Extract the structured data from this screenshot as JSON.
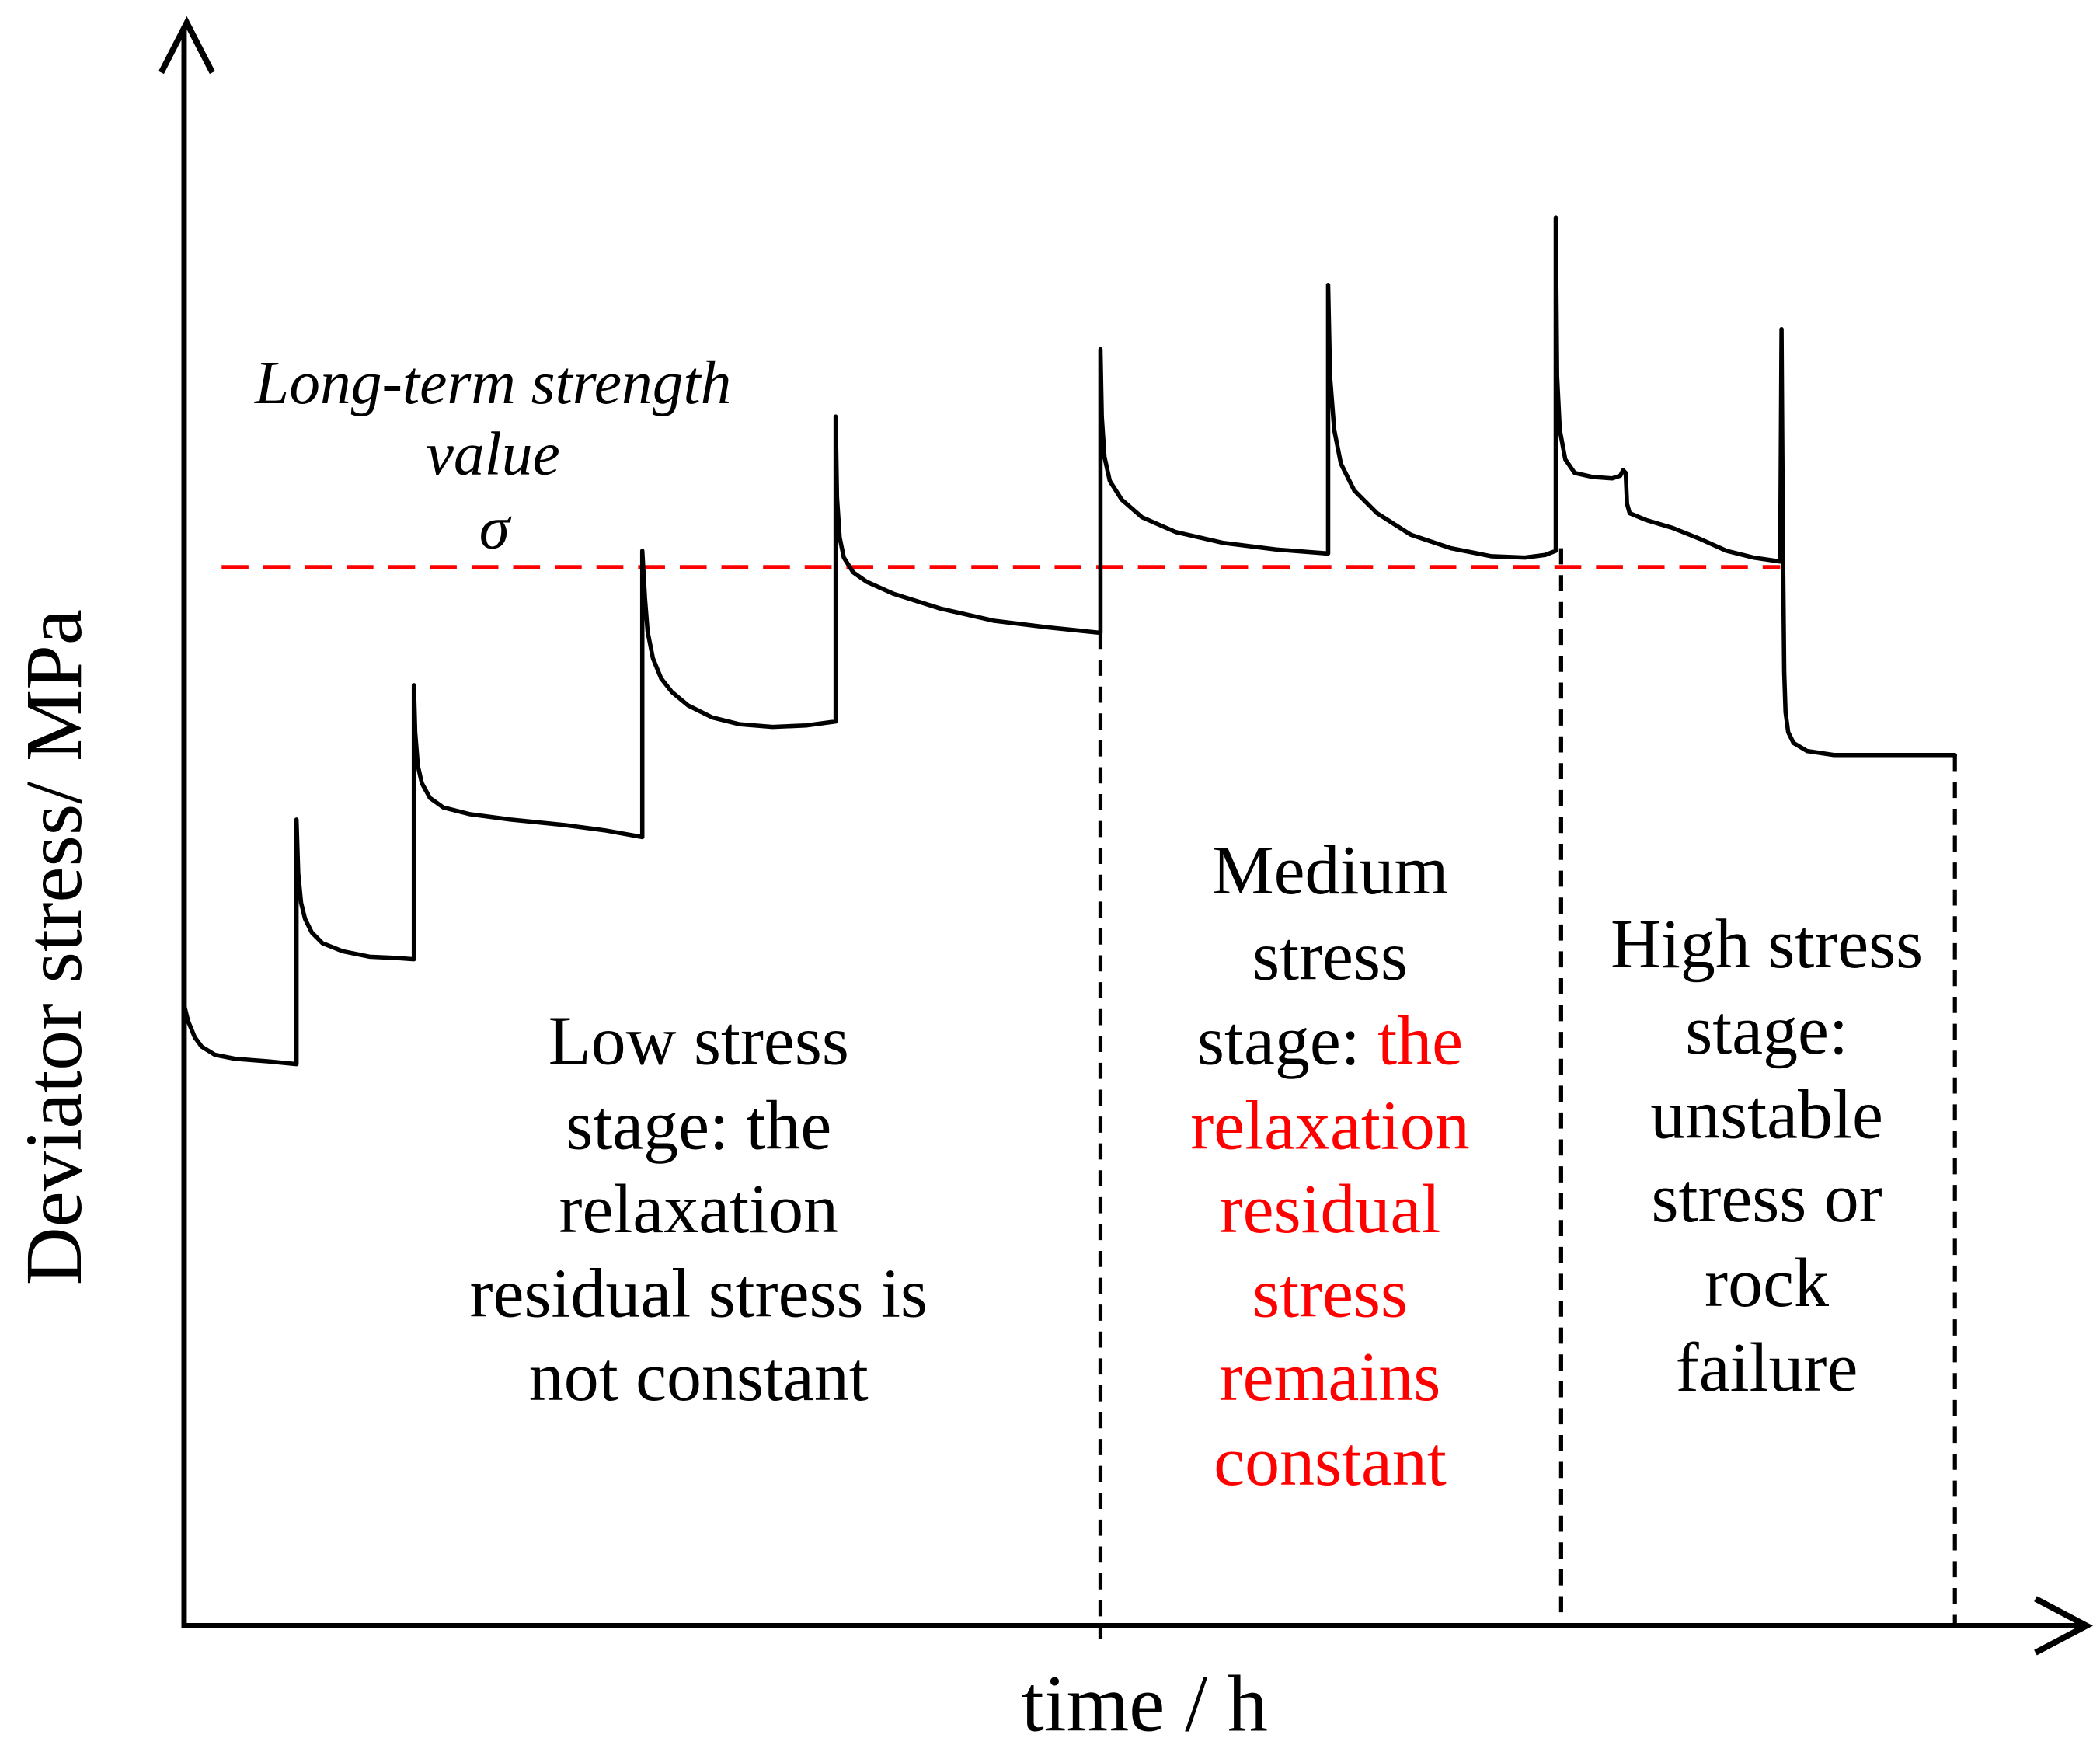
{
  "chart_data": {
    "type": "line",
    "title": "",
    "xlabel": "time / h",
    "ylabel": "Deviator stress/ MPa",
    "xlim": [
      0,
      100
    ],
    "ylim": [
      0,
      100
    ],
    "grid": false,
    "highlight_color": "#ff0000",
    "series": [
      {
        "color": "#000000",
        "x": [
          0,
          0.21,
          0.56,
          0.92,
          1.62,
          2.68,
          4.44,
          5.9,
          5.9,
          5.99,
          6.14,
          6.35,
          6.7,
          7.26,
          8.32,
          9.73,
          11.14,
          12.06,
          12.06,
          12.13,
          12.27,
          12.48,
          12.91,
          13.61,
          15.02,
          17.14,
          19.96,
          22.07,
          24.05,
          24.05,
          24.19,
          24.33,
          24.61,
          25.04,
          25.6,
          26.45,
          27.72,
          29.13,
          30.89,
          32.65,
          34.2,
          34.2,
          34.27,
          34.41,
          34.63,
          35.12,
          35.83,
          37.24,
          39.7,
          42.52,
          45.35,
          48.1,
          48.1,
          48.17,
          48.31,
          48.59,
          49.22,
          50.28,
          52.05,
          54.51,
          57.33,
          60.05,
          60.05,
          60.15,
          60.37,
          60.72,
          61.42,
          62.62,
          64.39,
          66.5,
          68.62,
          70.38,
          71.44,
          72.0,
          72.0,
          72.07,
          72.21,
          72.5,
          72.99,
          73.91,
          74.96,
          75.39,
          75.53,
          75.67,
          75.74,
          75.88,
          76.73,
          78.14,
          79.55,
          80.96,
          82.37,
          83.78,
          83.85,
          83.92,
          83.99,
          84.06,
          84.2,
          84.48,
          85.19,
          86.6,
          92.95
        ],
        "y": [
          38.66,
          37.66,
          36.65,
          36.07,
          35.56,
          35.31,
          35.15,
          34.98,
          50.21,
          46.86,
          45.02,
          44.02,
          43.18,
          42.51,
          42.01,
          41.67,
          41.59,
          41.51,
          58.58,
          55.65,
          53.56,
          52.47,
          51.55,
          50.96,
          50.54,
          50.21,
          49.87,
          49.54,
          49.12,
          66.95,
          64.02,
          61.92,
          60.25,
          59.0,
          58.16,
          57.32,
          56.57,
          56.15,
          55.98,
          56.07,
          56.32,
          75.31,
          70.29,
          67.78,
          66.53,
          65.61,
          65.02,
          64.27,
          63.35,
          62.59,
          62.18,
          61.84,
          79.5,
          75.31,
          72.8,
          71.3,
          70.13,
          69.04,
          68.12,
          67.45,
          67.03,
          66.78,
          83.51,
          77.82,
          74.48,
          72.38,
          70.71,
          69.29,
          67.95,
          67.11,
          66.61,
          66.53,
          66.69,
          66.95,
          87.7,
          77.82,
          74.48,
          72.64,
          71.8,
          71.55,
          71.46,
          71.63,
          71.97,
          71.8,
          69.87,
          69.29,
          68.87,
          68.37,
          67.7,
          66.95,
          66.53,
          66.28,
          80.75,
          67.78,
          59.41,
          56.9,
          55.65,
          54.98,
          54.48,
          54.23,
          54.23
        ]
      }
    ],
    "reference_line": {
      "label": [
        "Long-term strength",
        "value",
        "σ"
      ],
      "stress": 65.94,
      "from_time": 1.97,
      "to_time": 83.78,
      "color": "#ff0000"
    },
    "stage_boundaries": [
      {
        "time": 48.1,
        "stress_top": 61.84
      },
      {
        "time": 72.28,
        "stress_top": 67.11
      },
      {
        "time": 92.95,
        "stress_top": 54.23
      }
    ],
    "annotations": {
      "low_stage": [
        "Low stress",
        "stage: the",
        "relaxation",
        "residual stress is",
        "not constant"
      ],
      "medium_stage": {
        "black_lines": [
          "Medium",
          "stress",
          "stage:"
        ],
        "red_lines": [
          "the",
          "relaxation",
          "residual",
          "stress",
          "remains",
          "constant"
        ]
      },
      "high_stage": [
        "High stress",
        "stage:",
        "unstable",
        "stress or",
        "rock",
        "failure"
      ]
    }
  }
}
